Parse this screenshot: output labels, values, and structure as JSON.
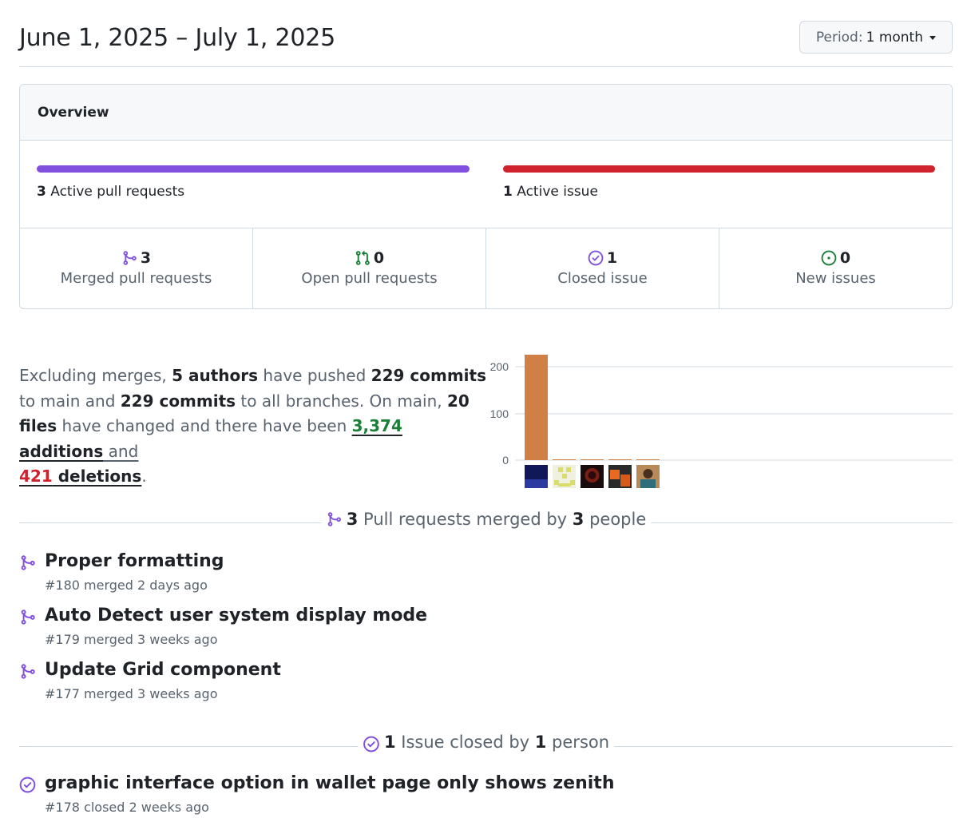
{
  "header": {
    "date_range": "June 1, 2025 – July 1, 2025",
    "period_label": "Period:",
    "period_value": "1 month"
  },
  "overview": {
    "title": "Overview",
    "pr_bar": {
      "count": "3",
      "label": "Active pull requests",
      "color": "#8250df"
    },
    "issue_bar": {
      "count": "1",
      "label": "Active issue",
      "color": "#cf222e"
    },
    "stats": [
      {
        "count": "3",
        "label": "Merged pull requests",
        "icon": "merged-icon",
        "color": "#8250df"
      },
      {
        "count": "0",
        "label": "Open pull requests",
        "icon": "pull-request-icon",
        "color": "#1a7f37"
      },
      {
        "count": "1",
        "label": "Closed issue",
        "icon": "issue-closed-icon",
        "color": "#8250df"
      },
      {
        "count": "0",
        "label": "New issues",
        "icon": "issue-opened-icon",
        "color": "#1a7f37"
      }
    ]
  },
  "summary": {
    "t1": "Excluding merges, ",
    "authors": "5 authors",
    "t2": " have pushed ",
    "commits_main": "229 commits",
    "t3": " to main and ",
    "commits_all": "229 commits",
    "t4": " to all branches. On main, ",
    "files": "20 files",
    "t5": " have changed and there have been ",
    "additions_num": "3,374",
    "additions_word": " additions",
    "t6": " and",
    "deletions_num": "421",
    "deletions_word": " deletions",
    "t7": "."
  },
  "chart_data": {
    "type": "bar",
    "categories": [
      "author-1",
      "author-2",
      "author-3",
      "author-4",
      "author-5"
    ],
    "values": [
      225,
      1,
      1,
      1,
      1
    ],
    "yticks": [
      "200",
      "100",
      "0"
    ],
    "ylim": [
      0,
      225
    ],
    "bar_color": "#d08047",
    "grid": true
  },
  "prs_section": {
    "count": "3",
    "t1": " Pull requests merged by ",
    "people": "3",
    "t2": " people"
  },
  "prs": [
    {
      "title": "Proper formatting",
      "meta": "#180 merged 2 days ago"
    },
    {
      "title": "Auto Detect user system display mode",
      "meta": "#179 merged 3 weeks ago"
    },
    {
      "title": "Update Grid component",
      "meta": "#177 merged 3 weeks ago"
    }
  ],
  "issues_section": {
    "count": "1",
    "t1": " Issue closed by ",
    "people": "1",
    "t2": " person"
  },
  "issues": [
    {
      "title": "graphic interface option in wallet page only shows zenith",
      "meta": "#178 closed 2 weeks ago"
    }
  ]
}
